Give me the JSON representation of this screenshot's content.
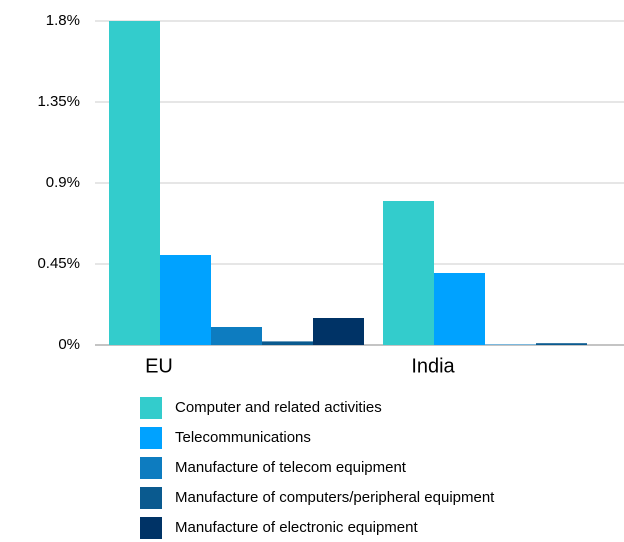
{
  "chart_data": {
    "type": "bar",
    "categories": [
      "EU",
      "India"
    ],
    "series": [
      {
        "name": "Computer and related activities",
        "color": "#33cccc",
        "values": [
          1.8,
          0.8
        ]
      },
      {
        "name": "Telecommunications",
        "color": "#00a2ff",
        "values": [
          0.5,
          0.4
        ]
      },
      {
        "name": "Manufacture of telecom equipment",
        "color": "#0d7cc0",
        "values": [
          0.1,
          0.003
        ]
      },
      {
        "name": "Manufacture of computers/peripheral equipment",
        "color": "#0a5a8f",
        "values": [
          0.02,
          0.01
        ]
      },
      {
        "name": "Manufacture of electronic equipment",
        "color": "#003366",
        "values": [
          0.15,
          0
        ]
      }
    ],
    "ylim": [
      0,
      1.8
    ],
    "yticks": [
      {
        "value": 0,
        "label": "0%"
      },
      {
        "value": 0.45,
        "label": "0.45%"
      },
      {
        "value": 0.9,
        "label": "0.9%"
      },
      {
        "value": 1.35,
        "label": "1.35%"
      },
      {
        "value": 1.8,
        "label": "1.8%"
      }
    ],
    "grid": true,
    "legend": "bottom"
  }
}
